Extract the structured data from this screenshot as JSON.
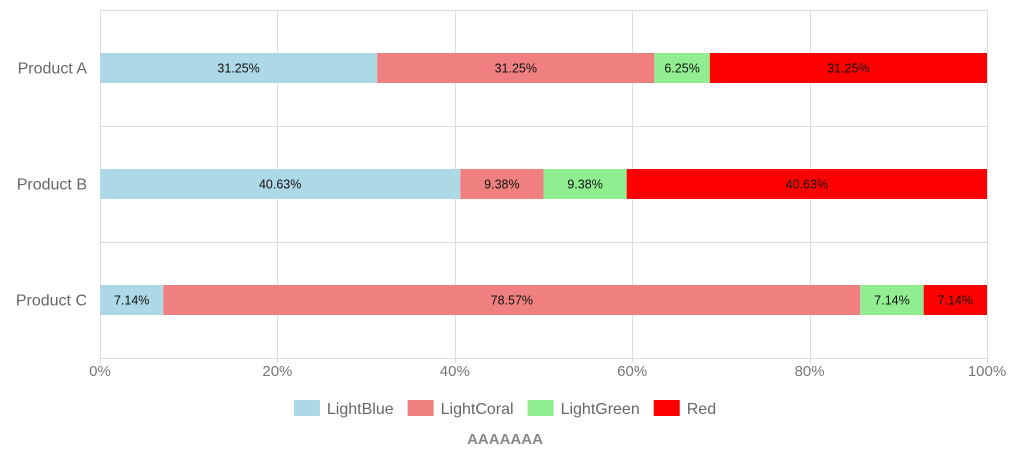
{
  "chart_data": {
    "type": "bar",
    "orientation": "horizontal",
    "stacked": "percent",
    "title": "AAAAAAA",
    "categories": [
      "Product A",
      "Product B",
      "Product C"
    ],
    "series": [
      {
        "name": "LightBlue",
        "color": "#add8e6",
        "values": [
          31.25,
          40.63,
          7.14
        ],
        "labels": [
          "31.25%",
          "40.63%",
          "7.14%"
        ]
      },
      {
        "name": "LightCoral",
        "color": "#f08080",
        "values": [
          31.25,
          9.38,
          78.57
        ],
        "labels": [
          "31.25%",
          "9.38%",
          "78.57%"
        ]
      },
      {
        "name": "LightGreen",
        "color": "#90ee90",
        "values": [
          6.25,
          9.38,
          7.14
        ],
        "labels": [
          "6.25%",
          "9.38%",
          "7.14%"
        ]
      },
      {
        "name": "Red",
        "color": "#ff0000",
        "values": [
          31.25,
          40.63,
          7.14
        ],
        "labels": [
          "31.25%",
          "40.63%",
          "7.14%"
        ]
      }
    ],
    "xlim": [
      0,
      100
    ],
    "xticks": [
      0,
      20,
      40,
      60,
      80,
      100
    ],
    "xtick_labels": [
      "0%",
      "20%",
      "40%",
      "60%",
      "80%",
      "100%"
    ],
    "grid": true,
    "legend": "bottom"
  }
}
